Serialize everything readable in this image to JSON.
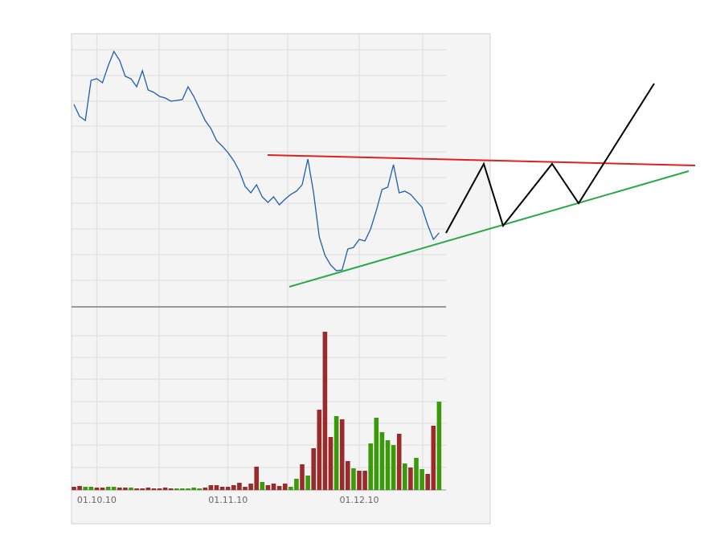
{
  "chart_data": [
    {
      "type": "line",
      "color": "#1f5fa8",
      "ylim": [
        0,
        338
      ],
      "values": [
        250,
        235,
        230,
        280,
        282,
        277,
        298,
        316,
        305,
        285,
        282,
        272,
        292,
        268,
        265,
        260,
        258,
        254,
        255,
        256,
        272,
        260,
        245,
        230,
        220,
        205,
        198,
        190,
        180,
        167,
        148,
        140,
        150,
        135,
        128,
        135,
        125,
        132,
        138,
        142,
        150,
        182,
        140,
        85,
        62,
        50,
        43,
        44,
        70,
        72,
        82,
        80,
        95,
        118,
        144,
        147,
        175,
        140,
        142,
        138,
        130,
        122,
        100,
        82,
        90
      ]
    },
    {
      "type": "bar",
      "ylim": [
        0,
        220
      ],
      "categories": [
        null,
        null,
        null,
        null,
        "01.10.10",
        null,
        null,
        null,
        null,
        null,
        null,
        null,
        null,
        null,
        null,
        null,
        null,
        null,
        null,
        null,
        null,
        null,
        null,
        null,
        null,
        null,
        null,
        "01.11.10",
        null,
        null,
        null,
        null,
        null,
        null,
        null,
        null,
        null,
        null,
        null,
        null,
        null,
        null,
        null,
        null,
        null,
        null,
        null,
        null,
        null,
        null,
        "01.12.10",
        null,
        null,
        null,
        null,
        null,
        null,
        null,
        null,
        null,
        null,
        null,
        null,
        null,
        null
      ],
      "values": [
        4,
        5,
        4,
        4,
        3,
        3,
        4,
        4,
        3,
        3,
        3,
        2,
        2,
        3,
        2,
        2,
        3,
        2,
        2,
        2,
        2,
        3,
        2,
        3,
        6,
        6,
        4,
        4,
        6,
        9,
        4,
        8,
        29,
        10,
        6,
        8,
        5,
        8,
        4,
        14,
        32,
        18,
        52,
        100,
        197,
        66,
        92,
        88,
        36,
        27,
        24,
        24,
        58,
        90,
        72,
        62,
        56,
        70,
        33,
        28,
        40,
        26,
        20,
        80,
        110
      ],
      "colors": [
        "#9b2a2a",
        "#9b2a2a",
        "#3a9a0a",
        "#3a9a0a",
        "#9b2a2a",
        "#9b2a2a",
        "#3a9a0a",
        "#3a9a0a",
        "#9b2a2a",
        "#9b2a2a",
        "#3a9a0a",
        "#9b2a2a",
        "#9b2a2a",
        "#9b2a2a",
        "#9b2a2a",
        "#9b2a2a",
        "#9b2a2a",
        "#9b2a2a",
        "#3a9a0a",
        "#3a9a0a",
        "#3a9a0a",
        "#3a9a0a",
        "#3a9a0a",
        "#9b2a2a",
        "#9b2a2a",
        "#9b2a2a",
        "#9b2a2a",
        "#9b2a2a",
        "#9b2a2a",
        "#9b2a2a",
        "#9b2a2a",
        "#9b2a2a",
        "#9b2a2a",
        "#3a9a0a",
        "#9b2a2a",
        "#9b2a2a",
        "#9b2a2a",
        "#9b2a2a",
        "#3a9a0a",
        "#3a9a0a",
        "#9b2a2a",
        "#3a9a0a",
        "#9b2a2a",
        "#9b2a2a",
        "#9b2a2a",
        "#9b2a2a",
        "#3a9a0a",
        "#9b2a2a",
        "#9b2a2a",
        "#3a9a0a",
        "#9b2a2a",
        "#9b2a2a",
        "#3a9a0a",
        "#3a9a0a",
        "#3a9a0a",
        "#3a9a0a",
        "#3a9a0a",
        "#9b2a2a",
        "#3a9a0a",
        "#9b2a2a",
        "#3a9a0a",
        "#3a9a0a",
        "#9b2a2a",
        "#9b2a2a",
        "#3a9a0a"
      ]
    }
  ]
}
